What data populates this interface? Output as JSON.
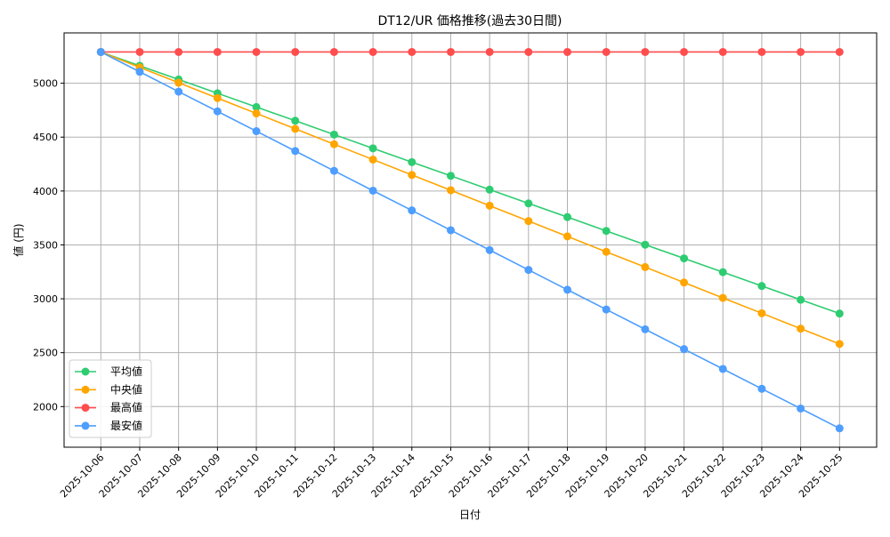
{
  "chart_data": {
    "type": "line",
    "title": "DT12/UR 価格推移(過去30日間)",
    "xlabel": "日付",
    "ylabel": "値 (円)",
    "x": [
      "2025-10-06",
      "2025-10-07",
      "2025-10-08",
      "2025-10-09",
      "2025-10-10",
      "2025-10-11",
      "2025-10-12",
      "2025-10-13",
      "2025-10-14",
      "2025-10-15",
      "2025-10-16",
      "2025-10-17",
      "2025-10-18",
      "2025-10-19",
      "2025-10-20",
      "2025-10-21",
      "2025-10-22",
      "2025-10-23",
      "2025-10-24",
      "2025-10-25"
    ],
    "ylim": [
      1623,
      5467
    ],
    "yticks": [
      2000,
      2500,
      3000,
      3500,
      4000,
      4500,
      5000
    ],
    "grid": true,
    "legend_position": "lower-left",
    "series": [
      {
        "name": "平均値",
        "color": "#2ecc71",
        "values": [
          5290,
          5162,
          5035,
          4907,
          4779,
          4652,
          4524,
          4396,
          4268,
          4141,
          4013,
          3885,
          3758,
          3630,
          3502,
          3375,
          3247,
          3119,
          2991,
          2863
        ]
      },
      {
        "name": "中央値",
        "color": "#ffa500",
        "values": [
          5290,
          5147,
          5005,
          4862,
          4720,
          4577,
          4434,
          4292,
          4149,
          4007,
          3864,
          3721,
          3579,
          3436,
          3294,
          3151,
          3008,
          2866,
          2723,
          2581
        ]
      },
      {
        "name": "最高値",
        "color": "#ff4d4d",
        "values": [
          5290,
          5290,
          5290,
          5290,
          5290,
          5290,
          5290,
          5290,
          5290,
          5290,
          5290,
          5290,
          5290,
          5290,
          5290,
          5290,
          5290,
          5290,
          5290,
          5290
        ]
      },
      {
        "name": "最安値",
        "color": "#4d9eff",
        "values": [
          5290,
          5106,
          4922,
          4739,
          4555,
          4371,
          4187,
          4003,
          3820,
          3636,
          3452,
          3268,
          3084,
          2901,
          2717,
          2533,
          2349,
          2165,
          1982,
          1798
        ]
      }
    ]
  }
}
